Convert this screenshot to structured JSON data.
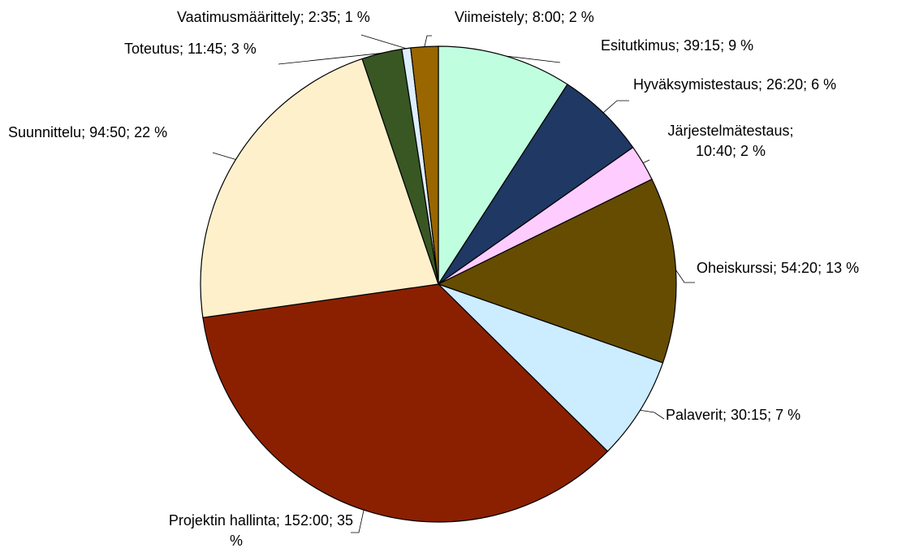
{
  "chart_data": {
    "type": "pie",
    "values": [
      39.25,
      26.3333,
      10.6667,
      54.3333,
      30.25,
      152,
      94.8333,
      11.75,
      2.5833,
      8
    ],
    "value_labels": [
      [
        "Esitutkimus; 39:15; 9 %"
      ],
      [
        "Hyväksymistestaus; 26:20; 6 %"
      ],
      [
        "Järjestelmätestaus;",
        "10:40; 2 %"
      ],
      [
        "Oheiskurssi; 54:20; 13 %"
      ],
      [
        "Palaverit; 30:15; 7 %"
      ],
      [
        "Projektin hallinta; 152:00; 35",
        "%"
      ],
      [
        "Suunnittelu; 94:50; 22 %"
      ],
      [
        "Toteutus; 11:45; 3 %"
      ],
      [
        "Vaatimusmäärittely; 2:35; 1 %"
      ],
      [
        "Viimeistely; 8:00; 2 %"
      ]
    ],
    "colors": [
      "#bfffe0",
      "#1f3864",
      "#ffccff",
      "#664c00",
      "#ccecff",
      "#8b2000",
      "#fff0cc",
      "#385723",
      "#ddeeff",
      "#996600"
    ]
  }
}
